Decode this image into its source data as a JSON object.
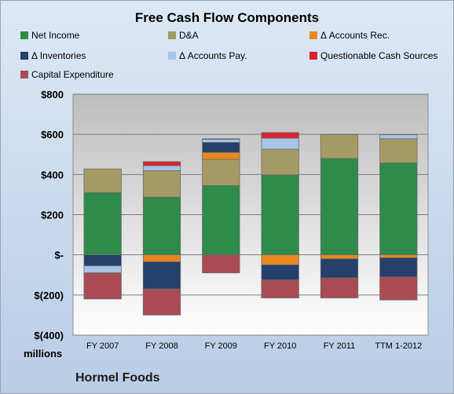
{
  "chart_data": {
    "type": "bar",
    "stacked": true,
    "title": "Free Cash Flow Components",
    "categories": [
      "FY 2007",
      "FY 2008",
      "FY 2009",
      "FY 2010",
      "FY 2011",
      "TTM 1-2012"
    ],
    "ylim": [
      -400,
      800
    ],
    "yticks": [
      800,
      600,
      400,
      200,
      0,
      -200,
      -400
    ],
    "ytick_labels": [
      "$800",
      "$600",
      "$400",
      "$200",
      "$-",
      "$(200)",
      "$(400)"
    ],
    "y_unit_label": "millions",
    "grid": true,
    "legend_position": "top",
    "series": [
      {
        "name": "Net Income",
        "color": "#2e8b4a",
        "values": [
          310,
          287,
          345,
          398,
          480,
          458
        ]
      },
      {
        "name": "D&A",
        "color": "#a59a63",
        "values": [
          118,
          132,
          130,
          128,
          118,
          120
        ]
      },
      {
        "name": "Δ Accounts Rec.",
        "color": "#e8871e",
        "values": [
          0,
          -35,
          35,
          -50,
          -20,
          -15
        ]
      },
      {
        "name": "Δ Inventories",
        "color": "#24406b",
        "values": [
          -55,
          -135,
          50,
          -75,
          -95,
          -95
        ]
      },
      {
        "name": "Δ Accounts Pay.",
        "color": "#a9c3e6",
        "values": [
          -35,
          25,
          15,
          55,
          0,
          20
        ]
      },
      {
        "name": "Questionable Cash Sources",
        "color": "#d9232e",
        "values": [
          0,
          20,
          3,
          28,
          0,
          0
        ]
      },
      {
        "name": "Capital Expenditure",
        "color": "#a84b53",
        "values": [
          -130,
          -130,
          -90,
          -90,
          -100,
          -115
        ]
      }
    ]
  },
  "footer": {
    "company": "Hormel Foods"
  }
}
